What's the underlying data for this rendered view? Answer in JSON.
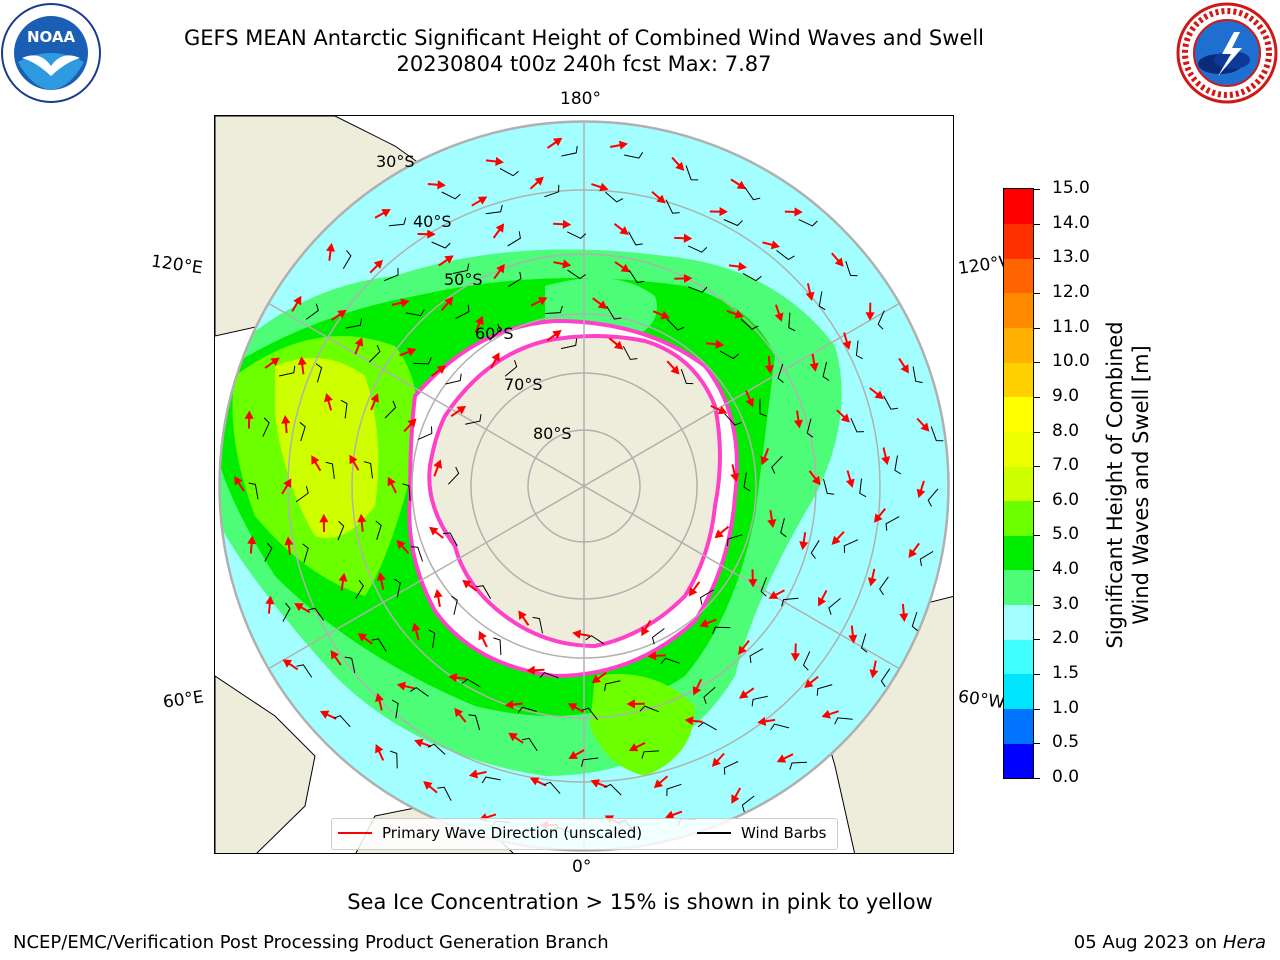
{
  "title": {
    "line1": "GEFS MEAN Antarctic Significant Height of Combined Wind Waves and Swell",
    "line2": "20230804 t00z 240h fcst   Max: 7.87"
  },
  "logos": {
    "left": {
      "name": "noaa-logo",
      "text": "NOAA",
      "ring_text": "NATIONAL OCEANIC AND ATMOSPHERIC ADMINISTRATION · U.S. DEPARTMENT OF COMMERCE"
    },
    "right": {
      "name": "nws-logo",
      "ring_text": "NATIONAL WEATHER SERVICE"
    }
  },
  "map": {
    "projection": "south-polar-stereographic",
    "lon_labels": {
      "top": "180°",
      "bottom": "0°",
      "left_upper": "120°E",
      "left_lower": "60°E",
      "right_upper": "120°W",
      "right_lower": "60°W"
    },
    "lat_labels": [
      "30°S",
      "40°S",
      "50°S",
      "60°S",
      "70°S",
      "80°S"
    ],
    "colors": {
      "land": "#eeecdb",
      "coast": "#000000",
      "grid": "#b0b0b0",
      "ice": "#ff40c8",
      "wave_arrow": "#ff0000",
      "barb": "#000000"
    }
  },
  "legend": {
    "wave": {
      "label": "Primary Wave Direction (unscaled)",
      "color": "#ff0000"
    },
    "wind": {
      "label": "Wind Barbs",
      "color": "#000000"
    }
  },
  "colorbar": {
    "label_line1": "Significant Height of Combined",
    "label_line2": "Wind Waves and Swell [m]",
    "ticks": [
      "0.0",
      "0.5",
      "1.0",
      "1.5",
      "2.0",
      "3.0",
      "4.0",
      "5.0",
      "6.0",
      "7.0",
      "8.0",
      "9.0",
      "10.0",
      "11.0",
      "12.0",
      "13.0",
      "14.0",
      "15.0"
    ],
    "colors": [
      "#0000ff",
      "#0073ff",
      "#00e5ff",
      "#40ffff",
      "#a3ffff",
      "#4dfc77",
      "#00ed00",
      "#6cff00",
      "#cdff00",
      "#eeff00",
      "#ffff00",
      "#ffd000",
      "#ffb000",
      "#ff8a00",
      "#ff6400",
      "#ff3000",
      "#ff0000"
    ]
  },
  "footer": {
    "note": "Sea Ice Concentration > 15% is shown in pink to yellow",
    "credit": "NCEP/EMC/Verification Post Processing Product Generation Branch",
    "date": "05 Aug 2023 on",
    "host": "Hera"
  }
}
